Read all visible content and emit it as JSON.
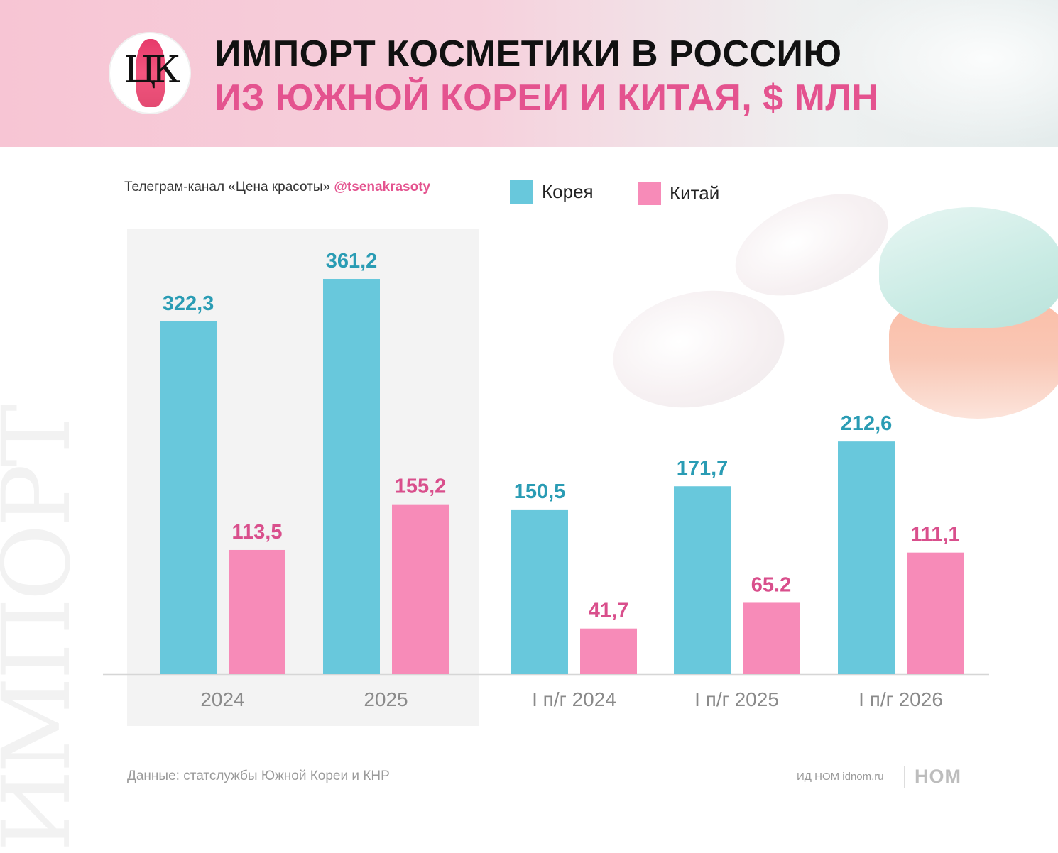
{
  "header": {
    "title_line1": "ИМПОРТ КОСМЕТИКИ В РОССИЮ",
    "title_line2": "ИЗ ЮЖНОЙ КОРЕИ И КИТАЯ, $ МЛН",
    "logo_text": "ЦК"
  },
  "watermark": "ИМПОРТ",
  "source_top": {
    "text": "Телеграм-канал «Цена красоты» ",
    "handle": "@tsenakrasoty"
  },
  "legend": [
    {
      "label": "Корея",
      "color": "#68c8dc"
    },
    {
      "label": "Китай",
      "color": "#f78bb8"
    }
  ],
  "footer": {
    "source": "Данные: статслужбы Южной Кореи и КНР",
    "credit": "ИД НОМ idnom.ru",
    "logo": "НОМ"
  },
  "chart_data": {
    "type": "bar",
    "categories": [
      "2024",
      "2025",
      "I п/г 2024",
      "I п/г 2025",
      "I п/г 2026"
    ],
    "series": [
      {
        "name": "Корея",
        "color": "#68c8dc",
        "label_color": "#2a9cb4",
        "values": [
          322.3,
          361.2,
          150.5,
          171.7,
          212.6
        ],
        "labels": [
          "322,3",
          "361,2",
          "150,5",
          "171,7",
          "212,6"
        ]
      },
      {
        "name": "Китай",
        "color": "#f78bb8",
        "label_color": "#d94f8c",
        "values": [
          113.5,
          155.2,
          41.7,
          65.2,
          111.1
        ],
        "labels": [
          "113,5",
          "155,2",
          "41,7",
          "65.2",
          "111,1"
        ]
      }
    ],
    "highlighted_categories": [
      "2024",
      "2025"
    ],
    "ylim": [
      0,
      361.2
    ]
  }
}
